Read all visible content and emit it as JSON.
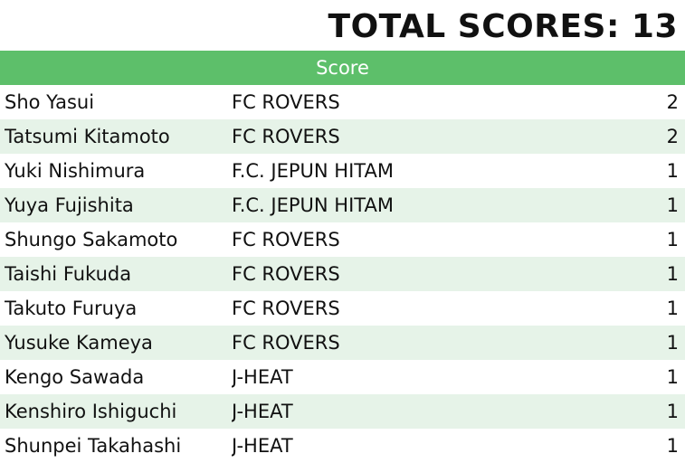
{
  "title": "TOTAL SCORES: 13",
  "table": {
    "header": "Score",
    "rows": [
      {
        "name": "Sho Yasui",
        "team": "FC ROVERS",
        "score": "2"
      },
      {
        "name": "Tatsumi Kitamoto",
        "team": "FC ROVERS",
        "score": "2"
      },
      {
        "name": "Yuki Nishimura",
        "team": "F.C. JEPUN HITAM",
        "score": "1"
      },
      {
        "name": "Yuya Fujishita",
        "team": "F.C. JEPUN HITAM",
        "score": "1"
      },
      {
        "name": "Shungo Sakamoto",
        "team": "FC ROVERS",
        "score": "1"
      },
      {
        "name": "Taishi Fukuda",
        "team": "FC ROVERS",
        "score": "1"
      },
      {
        "name": "Takuto Furuya",
        "team": "FC ROVERS",
        "score": "1"
      },
      {
        "name": "Yusuke Kameya",
        "team": "FC ROVERS",
        "score": "1"
      },
      {
        "name": "Kengo Sawada",
        "team": "J-HEAT",
        "score": "1"
      },
      {
        "name": "Kenshiro Ishiguchi",
        "team": "J-HEAT",
        "score": "1"
      },
      {
        "name": "Shunpei Takahashi",
        "team": "J-HEAT",
        "score": "1"
      }
    ]
  },
  "colors": {
    "header_bg": "#5dbf6a",
    "stripe_bg": "#e6f3e8"
  }
}
